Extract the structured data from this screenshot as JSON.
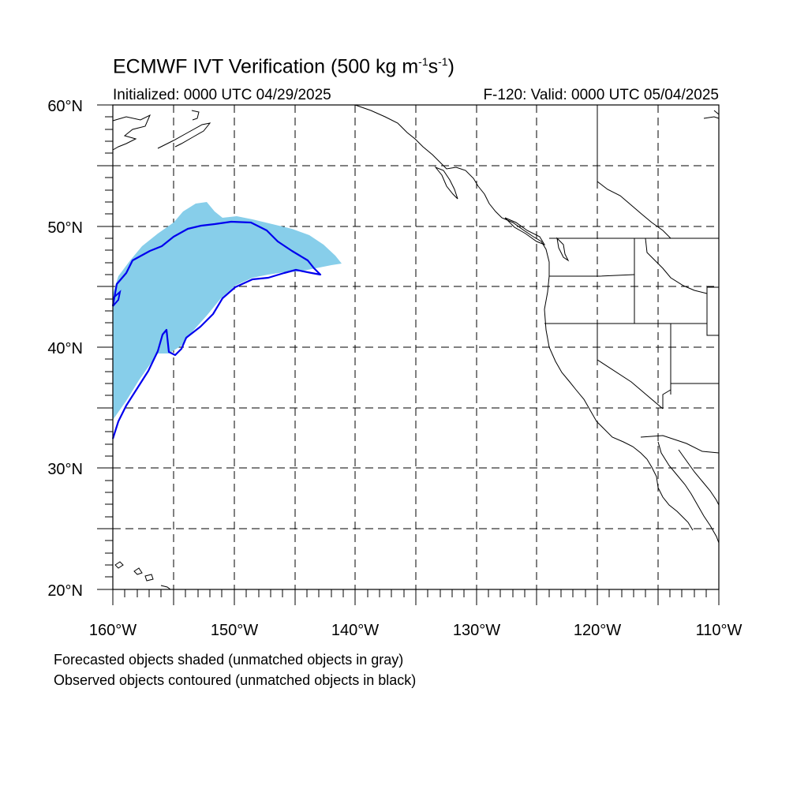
{
  "title": {
    "main": "ECMWF IVT Verification (500 kg m",
    "exp1": "-1",
    "mid": "s",
    "exp2": "-1",
    "close": ")"
  },
  "initialized": "Initialized: 0000 UTC 04/29/2025",
  "valid": "F-120: Valid: 0000 UTC 05/04/2025",
  "lat_labels": [
    "60°N",
    "50°N",
    "40°N",
    "30°N",
    "20°N"
  ],
  "lon_labels": [
    "160°W",
    "150°W",
    "140°W",
    "130°W",
    "120°W",
    "110°W"
  ],
  "caption": {
    "line1": "Forecasted objects shaded (unmatched objects in gray)",
    "line2": "Observed objects contoured (unmatched objects in black)"
  },
  "colors": {
    "forecast_fill": "#87ceea",
    "observed_contour": "#0000ee",
    "coastline": "#000000",
    "grid": "#000000"
  },
  "map_extent": {
    "lon": [
      -160,
      -110
    ],
    "lat": [
      20,
      60
    ]
  }
}
